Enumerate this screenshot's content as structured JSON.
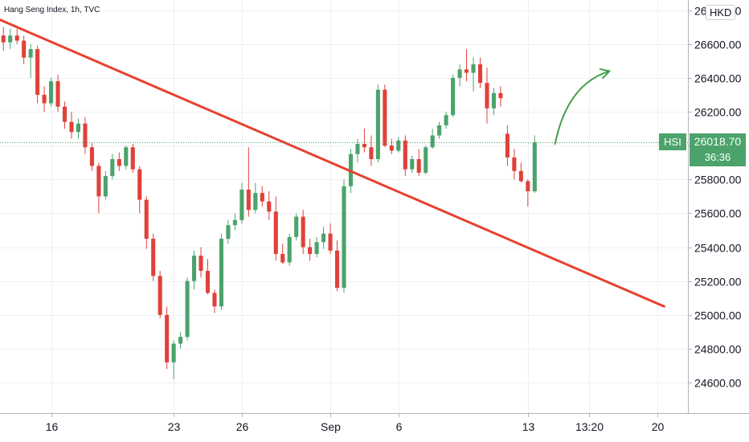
{
  "header": {
    "title": "Hang Seng Index, 1h, TVC",
    "currency": "HKD"
  },
  "last_price": {
    "symbol": "HSI",
    "value": "26018.70",
    "countdown": "36:36",
    "color": "#4ba36b"
  },
  "colors": {
    "up": "#4ba36b",
    "down": "#e0413a",
    "trendline": "#e8412f",
    "arrow": "#43a047",
    "grid": "#eef0f4"
  },
  "chart_data": {
    "type": "candlestick",
    "instrument": "Hang Seng Index",
    "interval": "1h",
    "yticks": [
      "24600.00",
      "24800.00",
      "25000.00",
      "25200.00",
      "25400.00",
      "25600.00",
      "25800.00",
      "26000.00",
      "26200.00",
      "26400.00",
      "26600.00",
      "26800.00"
    ],
    "ylim": [
      24420,
      26860
    ],
    "xticks": [
      {
        "label": "16",
        "bar": 7
      },
      {
        "label": "23",
        "bar": 25
      },
      {
        "label": "26",
        "bar": 35
      },
      {
        "label": "Sep",
        "bar": 48
      },
      {
        "label": "6",
        "bar": 58
      },
      {
        "label": "13",
        "bar": 77
      },
      {
        "label": "13:20",
        "bar": 86
      },
      {
        "label": "20",
        "bar": 96
      }
    ],
    "xlim": [
      -0.5,
      100.5
    ],
    "grid": true,
    "candles": [
      [
        26650,
        26700,
        26560,
        26610
      ],
      [
        26610,
        26690,
        26570,
        26650
      ],
      [
        26650,
        26690,
        26600,
        26620
      ],
      [
        26620,
        26650,
        26480,
        26520
      ],
      [
        26520,
        26600,
        26400,
        26570
      ],
      [
        26570,
        26590,
        26250,
        26300
      ],
      [
        26300,
        26350,
        26200,
        26250
      ],
      [
        26250,
        26400,
        26230,
        26380
      ],
      [
        26380,
        26420,
        26200,
        26230
      ],
      [
        26230,
        26260,
        26100,
        26140
      ],
      [
        26140,
        26200,
        26040,
        26080
      ],
      [
        26080,
        26160,
        26040,
        26130
      ],
      [
        26130,
        26170,
        25950,
        25990
      ],
      [
        25990,
        26020,
        25850,
        25880
      ],
      [
        25880,
        25900,
        25600,
        25700
      ],
      [
        25700,
        25850,
        25680,
        25820
      ],
      [
        25820,
        25950,
        25800,
        25920
      ],
      [
        25920,
        25960,
        25850,
        25880
      ],
      [
        25880,
        26000,
        25860,
        25990
      ],
      [
        25990,
        26010,
        25840,
        25860
      ],
      [
        25860,
        25880,
        25600,
        25680
      ],
      [
        25680,
        25700,
        25390,
        25450
      ],
      [
        25450,
        25480,
        25200,
        25230
      ],
      [
        25230,
        25260,
        24980,
        25000
      ],
      [
        25000,
        25050,
        24680,
        24720
      ],
      [
        24720,
        24850,
        24620,
        24830
      ],
      [
        24830,
        24900,
        24800,
        24870
      ],
      [
        24870,
        25220,
        24850,
        25200
      ],
      [
        25200,
        25380,
        25150,
        25350
      ],
      [
        25350,
        25400,
        25220,
        25260
      ],
      [
        25260,
        25330,
        25120,
        25130
      ],
      [
        25130,
        25150,
        25010,
        25050
      ],
      [
        25050,
        25480,
        25030,
        25450
      ],
      [
        25450,
        25560,
        25420,
        25530
      ],
      [
        25530,
        25600,
        25500,
        25560
      ],
      [
        25560,
        25780,
        25540,
        25740
      ],
      [
        25740,
        25990,
        25580,
        25620
      ],
      [
        25620,
        25780,
        25600,
        25720
      ],
      [
        25720,
        25760,
        25640,
        25670
      ],
      [
        25670,
        25730,
        25560,
        25610
      ],
      [
        25610,
        25700,
        25320,
        25360
      ],
      [
        25360,
        25420,
        25300,
        25310
      ],
      [
        25310,
        25480,
        25290,
        25460
      ],
      [
        25460,
        25600,
        25440,
        25580
      ],
      [
        25580,
        25620,
        25360,
        25400
      ],
      [
        25400,
        25450,
        25320,
        25360
      ],
      [
        25360,
        25460,
        25340,
        25430
      ],
      [
        25430,
        25520,
        25390,
        25480
      ],
      [
        25480,
        25540,
        25360,
        25380
      ],
      [
        25380,
        25440,
        25140,
        25160
      ],
      [
        25160,
        25800,
        25130,
        25760
      ],
      [
        25760,
        25980,
        25720,
        25950
      ],
      [
        25950,
        26040,
        25900,
        26010
      ],
      [
        26010,
        26100,
        25960,
        25990
      ],
      [
        25990,
        26060,
        25880,
        25920
      ],
      [
        25920,
        26360,
        25900,
        26330
      ],
      [
        26330,
        26360,
        25990,
        26000
      ],
      [
        26000,
        26040,
        25950,
        25970
      ],
      [
        25970,
        26050,
        25960,
        26030
      ],
      [
        26030,
        26060,
        25820,
        25860
      ],
      [
        25860,
        25940,
        25840,
        25920
      ],
      [
        25920,
        25980,
        25820,
        25840
      ],
      [
        25840,
        26000,
        25830,
        25990
      ],
      [
        25990,
        26100,
        25980,
        26060
      ],
      [
        26060,
        26140,
        26040,
        26120
      ],
      [
        26120,
        26200,
        26100,
        26180
      ],
      [
        26180,
        26420,
        26170,
        26400
      ],
      [
        26400,
        26480,
        26350,
        26450
      ],
      [
        26450,
        26570,
        26380,
        26430
      ],
      [
        26430,
        26520,
        26320,
        26480
      ],
      [
        26480,
        26520,
        26340,
        26370
      ],
      [
        26370,
        26460,
        26130,
        26220
      ],
      [
        26220,
        26340,
        26180,
        26310
      ],
      [
        26310,
        26350,
        26230,
        26280
      ],
      [
        26070,
        26120,
        25880,
        25930
      ],
      [
        25930,
        25980,
        25800,
        25850
      ],
      [
        25850,
        25900,
        25780,
        25790
      ],
      [
        25790,
        25800,
        25640,
        25730
      ],
      [
        25730,
        26060,
        25720,
        26020
      ]
    ],
    "trendline": [
      [
        -13,
        26960
      ],
      [
        97,
        25050
      ]
    ],
    "arrow": [
      [
        81,
        26010
      ],
      [
        89,
        26440
      ]
    ]
  }
}
